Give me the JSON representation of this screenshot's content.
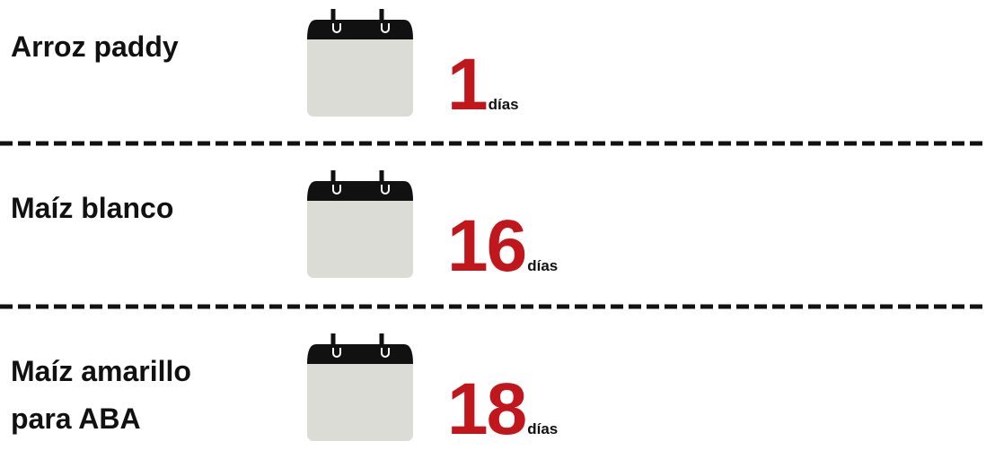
{
  "items": [
    {
      "label": "Arroz paddy",
      "value": 1,
      "unit": "días"
    },
    {
      "label": "Maíz blanco",
      "value": 16,
      "unit": "días"
    },
    {
      "label": "Maíz amarillo para ABA",
      "value": 18,
      "unit": "días"
    }
  ]
}
